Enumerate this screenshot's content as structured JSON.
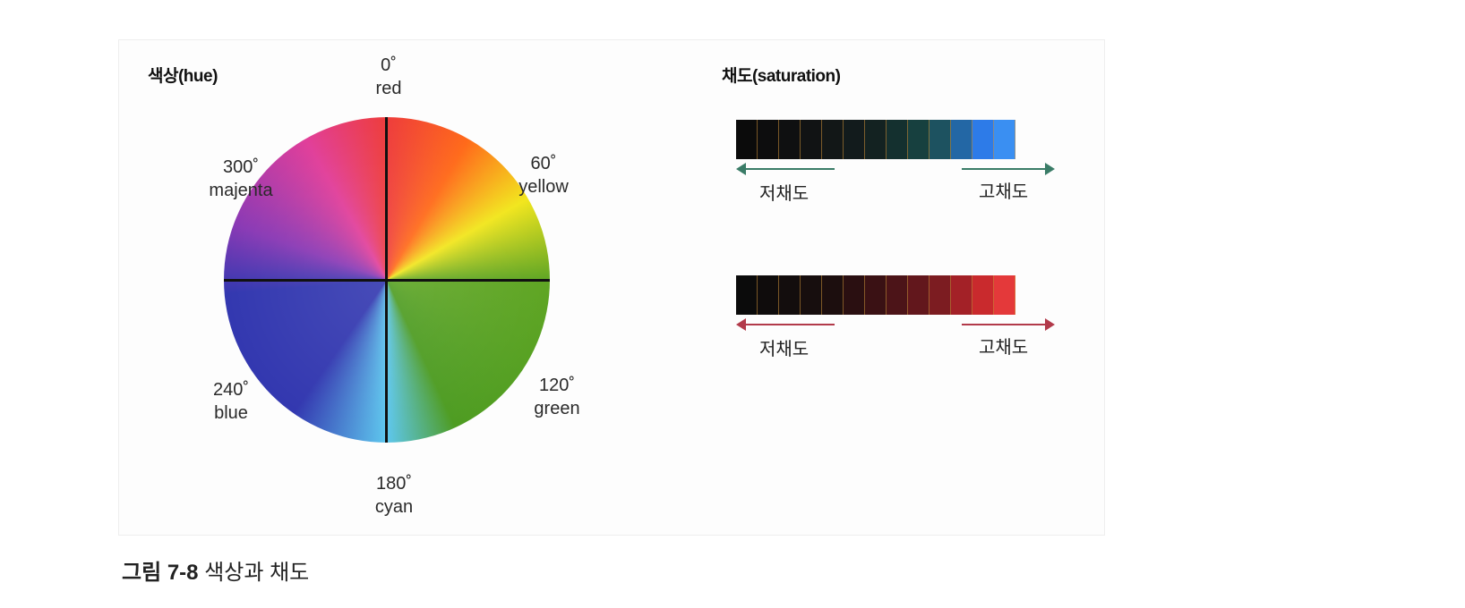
{
  "hue": {
    "title": "색상(hue)",
    "labels": [
      {
        "deg": "0˚",
        "name": "red"
      },
      {
        "deg": "60˚",
        "name": "yellow"
      },
      {
        "deg": "120˚",
        "name": "green"
      },
      {
        "deg": "180˚",
        "name": "cyan"
      },
      {
        "deg": "240˚",
        "name": "blue"
      },
      {
        "deg": "300˚",
        "name": "majenta"
      }
    ]
  },
  "saturation": {
    "title": "채도(saturation)",
    "strips": [
      {
        "cells": [
          "#0b0b0b",
          "#0d0d0e",
          "#0f1011",
          "#111314",
          "#121717",
          "#121b1c",
          "#132221",
          "#14302f",
          "#17403f",
          "#1d5260",
          "#2367a5",
          "#2d7be8",
          "#3a8ff2"
        ],
        "arrow_color": "#3a7c67",
        "low_label": "저채도",
        "high_label": "고채도"
      },
      {
        "cells": [
          "#0b0b0b",
          "#0f0c0c",
          "#130d0d",
          "#170e0e",
          "#1c0e0e",
          "#2a0f11",
          "#3a1114",
          "#4c1418",
          "#62171c",
          "#7c1c21",
          "#a32127",
          "#c92a2d",
          "#e4393a"
        ],
        "arrow_color": "#b23a4a",
        "low_label": "저채도",
        "high_label": "고채도"
      }
    ]
  },
  "caption": {
    "number": "그림 7-8",
    "text": "색상과 채도"
  }
}
